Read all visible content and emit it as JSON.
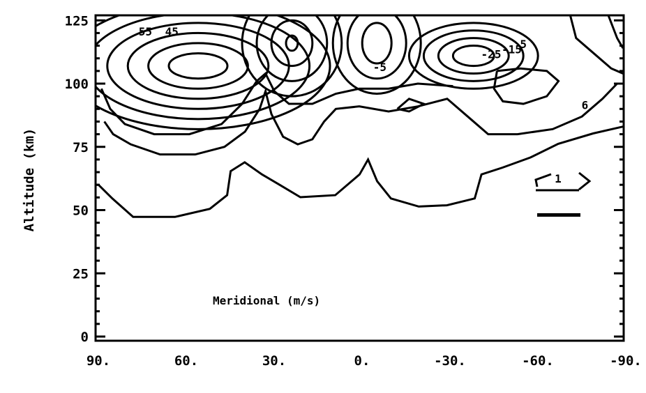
{
  "chart_data": {
    "type": "contour",
    "xlabel": "",
    "ylabel": "Altitude (km)",
    "annotation": "Meridional (m/s)",
    "xlim": [
      90,
      -90
    ],
    "ylim": [
      0,
      125
    ],
    "x_ticks": [
      90,
      60,
      30,
      0,
      -30,
      -60,
      -90
    ],
    "x_tick_labels": [
      "90.",
      "60.",
      "30.",
      "0.",
      "-30.",
      "-60.",
      "-90."
    ],
    "y_ticks": [
      0,
      25,
      50,
      75,
      100,
      125
    ],
    "y_tick_labels": [
      "0",
      "25",
      "50",
      "75",
      "100",
      "125"
    ],
    "grid": false,
    "line_color": "#000000",
    "contour_labels": [
      {
        "text": "55",
        "lat": 73,
        "alt": 119
      },
      {
        "text": "45",
        "lat": 64,
        "alt": 119
      },
      {
        "text": "-5",
        "lat": -7,
        "alt": 105
      },
      {
        "text": "-25",
        "lat": -45,
        "alt": 110
      },
      {
        "text": "-15",
        "lat": -52,
        "alt": 112
      },
      {
        "text": "5",
        "lat": -56,
        "alt": 114
      },
      {
        "text": "6",
        "lat": -77,
        "alt": 90
      }
    ],
    "open_contours": [
      [
        [
          90,
          60
        ],
        [
          89,
          60
        ],
        [
          84.3,
          54.6
        ],
        [
          77.2,
          47.3
        ],
        [
          62.9,
          47.3
        ],
        [
          51,
          50.5
        ],
        [
          45.1,
          55.9
        ],
        [
          43.9,
          65.4
        ],
        [
          39.1,
          68.9
        ],
        [
          33.2,
          64.1
        ],
        [
          27.2,
          60
        ],
        [
          20.1,
          55.1
        ],
        [
          8.2,
          55.9
        ],
        [
          -0.1,
          64.1
        ],
        [
          -3,
          70
        ],
        [
          -6.1,
          61.4
        ],
        [
          -10.8,
          54.6
        ],
        [
          -20.3,
          51.4
        ],
        [
          -29.9,
          51.9
        ],
        [
          -39.4,
          54.6
        ],
        [
          -41.7,
          64.1
        ],
        [
          -48.9,
          66.8
        ],
        [
          -58.4,
          70.8
        ],
        [
          -67.9,
          76.2
        ],
        [
          -79.8,
          80.3
        ],
        [
          -90,
          83
        ]
      ],
      [
        [
          87,
          85
        ],
        [
          84,
          80
        ],
        [
          78,
          76
        ],
        [
          68,
          72
        ],
        [
          56,
          72
        ],
        [
          46,
          75
        ],
        [
          39,
          81
        ],
        [
          34,
          90
        ],
        [
          32,
          97
        ],
        [
          30,
          88
        ],
        [
          26,
          79
        ],
        [
          21,
          76
        ],
        [
          16,
          78
        ],
        [
          12,
          85
        ],
        [
          8,
          90
        ],
        [
          0,
          91
        ],
        [
          -10,
          89
        ],
        [
          -20,
          91
        ],
        [
          -30,
          94
        ],
        [
          -38,
          86
        ],
        [
          -44,
          80
        ],
        [
          -54,
          80
        ],
        [
          -66,
          82
        ],
        [
          -76,
          87
        ],
        [
          -83,
          94
        ],
        [
          -88,
          100
        ]
      ],
      [
        [
          88,
          98
        ],
        [
          85,
          90
        ],
        [
          80,
          84
        ],
        [
          70,
          80
        ],
        [
          58,
          80
        ],
        [
          47,
          84
        ],
        [
          40,
          92
        ],
        [
          35,
          101
        ],
        [
          32,
          104
        ],
        [
          29,
          97
        ],
        [
          24,
          92
        ],
        [
          16,
          92
        ],
        [
          8,
          96
        ],
        [
          0,
          98
        ],
        [
          -10,
          98
        ],
        [
          -20,
          100
        ],
        [
          -32,
          99
        ]
      ],
      [
        [
          -72,
          127
        ],
        [
          -74,
          118
        ],
        [
          -80,
          112
        ],
        [
          -86,
          106
        ],
        [
          -90,
          104
        ]
      ],
      [
        [
          -85,
          127
        ],
        [
          -88,
          118
        ],
        [
          -90,
          114
        ]
      ]
    ],
    "ellipses": [
      {
        "lat": 55,
        "alt": 107,
        "rx": [
          10,
          17,
          24,
          31,
          38,
          45
        ],
        "ry": [
          5,
          9,
          13,
          17,
          21,
          25
        ]
      },
      {
        "lat": 23,
        "alt": 116,
        "rx": [
          2,
          7,
          12,
          17
        ],
        "ry": [
          3,
          9,
          15,
          21
        ]
      },
      {
        "lat": -6,
        "alt": 116,
        "rx": [
          5,
          10,
          15
        ],
        "ry": [
          8,
          14,
          20
        ]
      },
      {
        "lat": -39,
        "alt": 111,
        "rx": [
          7,
          12,
          17,
          22
        ],
        "ry": [
          4,
          7,
          10,
          13
        ]
      }
    ],
    "closed_contours": [
      [
        [
          -47,
          105
        ],
        [
          -55,
          106
        ],
        [
          -64,
          105
        ],
        [
          -68,
          101
        ],
        [
          -64,
          95
        ],
        [
          -56,
          92
        ],
        [
          -49,
          93
        ],
        [
          -46,
          98
        ],
        [
          -47,
          105
        ]
      ],
      [
        [
          -13,
          90
        ],
        [
          -17,
          89
        ],
        [
          -22,
          92
        ],
        [
          -17,
          94
        ],
        [
          -13,
          90
        ]
      ]
    ],
    "scale_vector": {
      "label": "1"
    }
  }
}
